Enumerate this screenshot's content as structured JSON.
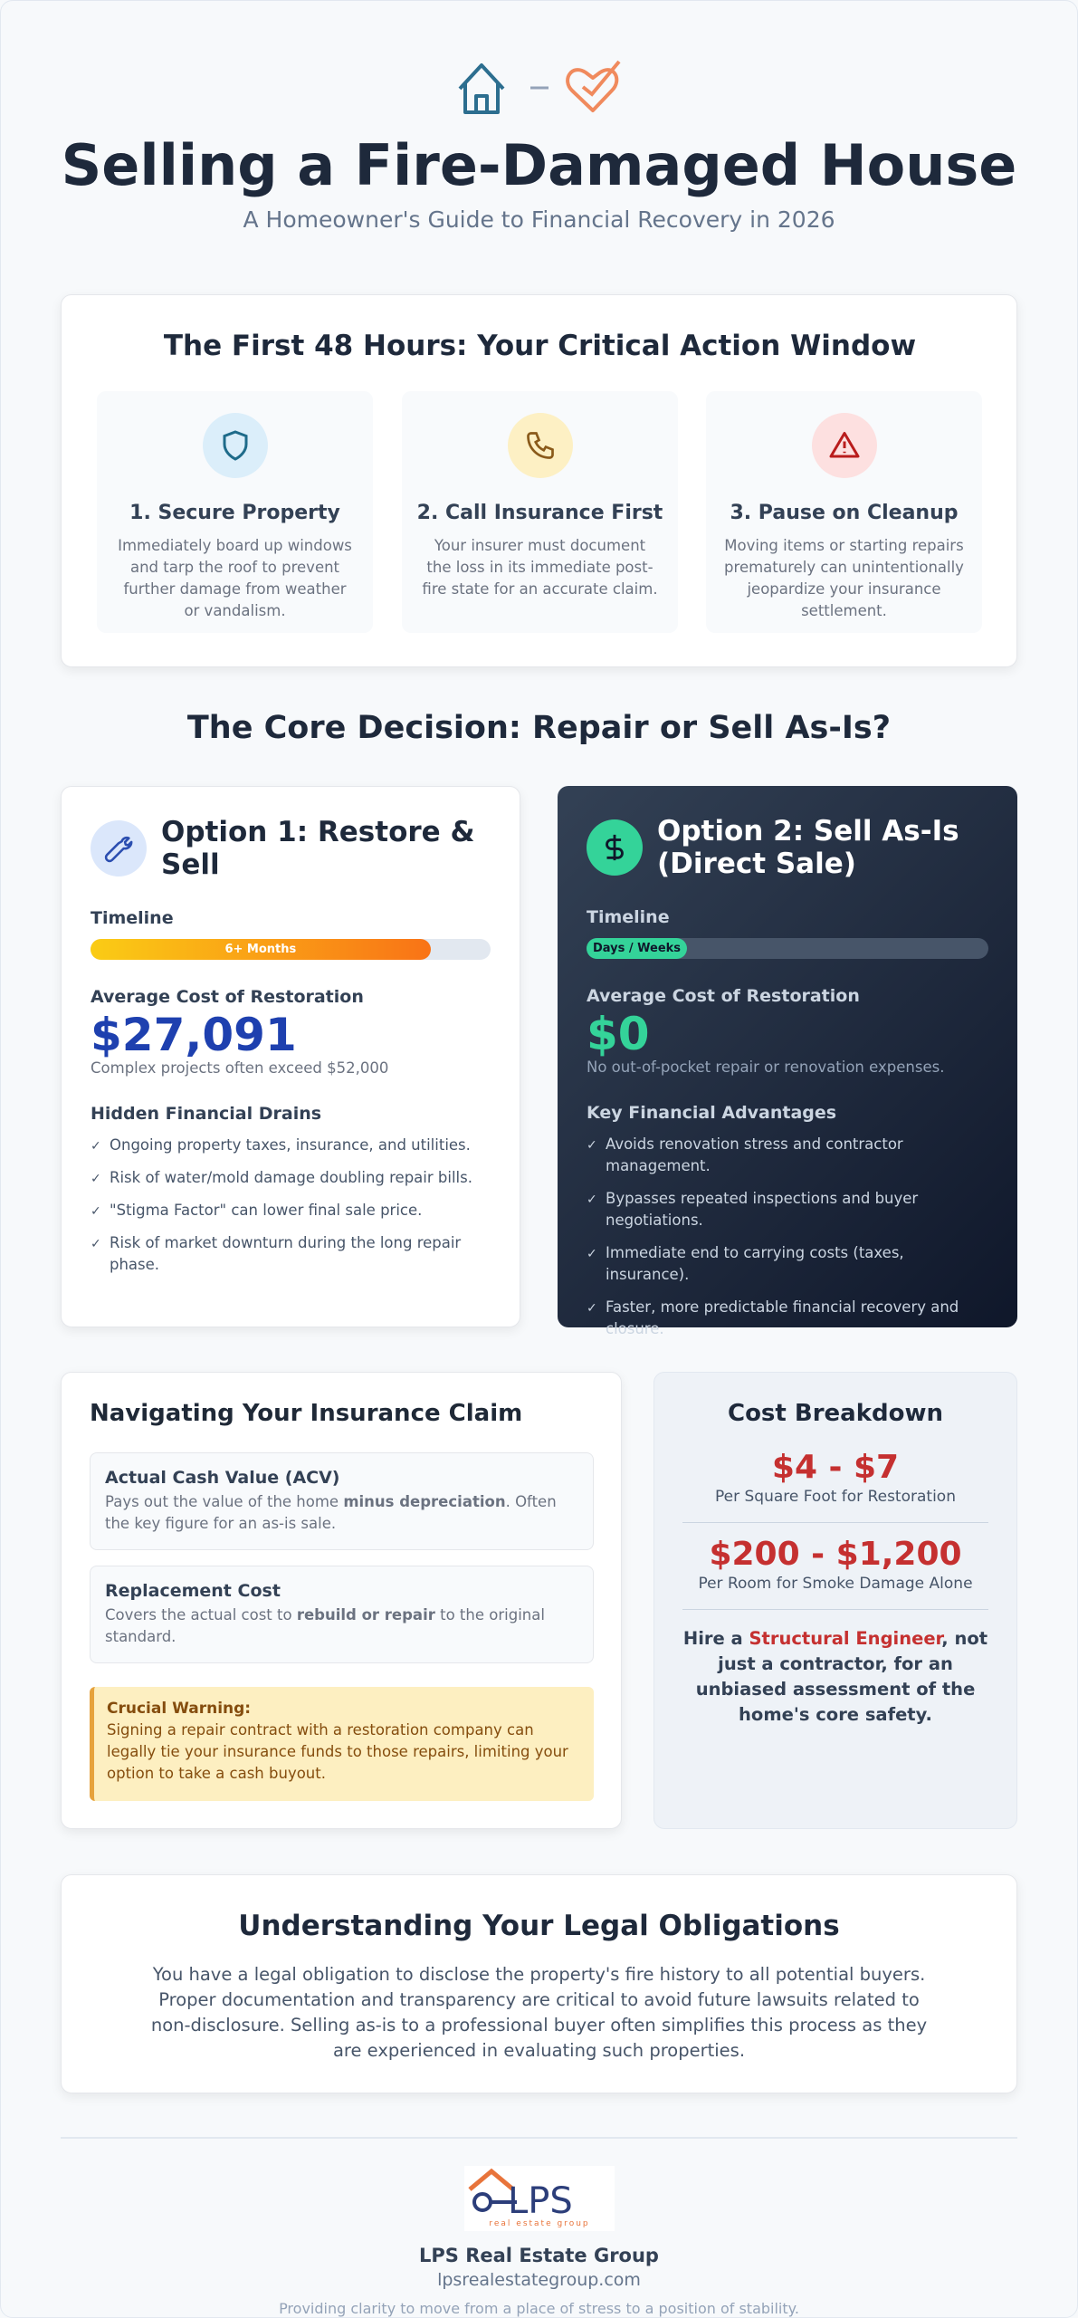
{
  "header": {
    "title": "Selling a Fire-Damaged House",
    "subtitle": "A Homeowner's Guide to Financial Recovery in 2026"
  },
  "first48": {
    "title": "The First 48 Hours: Your Critical Action Window",
    "steps": [
      {
        "title": "1. Secure Property",
        "text": "Immediately board up windows and tarp the roof to prevent further damage from weather or vandalism."
      },
      {
        "title": "2. Call Insurance First",
        "text": "Your insurer must document the loss in its immediate post-fire state for an accurate claim."
      },
      {
        "title": "3. Pause on Cleanup",
        "text": "Moving items or starting repairs prematurely can unintentionally jeopardize your insurance settlement."
      }
    ]
  },
  "decision": {
    "title": "The Core Decision: Repair or Sell As-Is?",
    "options": [
      {
        "title": "Option 1: Restore & Sell",
        "timeline_label": "Timeline",
        "timeline_value": "6+ Months",
        "cost_label": "Average Cost of Restoration",
        "cost": "$27,091",
        "cost_note": "Complex projects often exceed $52,000",
        "list_title": "Hidden Financial Drains",
        "items": [
          "Ongoing property taxes, insurance, and utilities.",
          "Risk of water/mold damage doubling repair bills.",
          "\"Stigma Factor\" can lower final sale price.",
          "Risk of market downturn during the long repair phase."
        ]
      },
      {
        "title": "Option 2: Sell As-Is (Direct Sale)",
        "timeline_label": "Timeline",
        "timeline_value": "Days / Weeks",
        "cost_label": "Average Cost of Restoration",
        "cost": "$0",
        "cost_note": "No out-of-pocket repair or renovation expenses.",
        "list_title": "Key Financial Advantages",
        "items": [
          "Avoids renovation stress and contractor management.",
          "Bypasses repeated inspections and buyer negotiations.",
          "Immediate end to carrying costs (taxes, insurance).",
          "Faster, more predictable financial recovery and closure."
        ]
      }
    ]
  },
  "insurance": {
    "title": "Navigating Your Insurance Claim",
    "acv": {
      "title": "Actual Cash Value (ACV)",
      "text": [
        "Pays out the value of the home ",
        "minus depreciation",
        ". Often the key figure for an as-is sale."
      ]
    },
    "replacement": {
      "title": "Replacement Cost",
      "text": [
        "Covers the actual cost to ",
        "rebuild or repair",
        " to the original standard."
      ]
    },
    "warning": {
      "title": "Crucial Warning:",
      "text": "Signing a repair contract with a restoration company can legally tie your insurance funds to those repairs, limiting your option to take a cash buyout."
    }
  },
  "cost_breakdown": {
    "title": "Cost Breakdown",
    "items": [
      {
        "value": "$4 - $7",
        "label": "Per Square Foot for Restoration"
      },
      {
        "value": "$200 - $1,200",
        "label": "Per Room for Smoke Damage Alone"
      }
    ],
    "note": [
      "Hire a ",
      "Structural Engineer",
      ", not just a contractor, for an unbiased assessment of the home's core safety."
    ]
  },
  "legal": {
    "title": "Understanding Your Legal Obligations",
    "text": "You have a legal obligation to disclose the property's fire history to all potential buyers. Proper documentation and transparency are critical to avoid future lawsuits related to non-disclosure. Selling as-is to a professional buyer often simplifies this process as they are experienced in evaluating such properties."
  },
  "footer": {
    "logo_text": "LPS",
    "logo_tagline": "real estate group",
    "name": "LPS Real Estate Group",
    "url": "lpsrealestategroup.com",
    "tagline": "Providing clarity to move from a place of stress to a position of stability."
  }
}
